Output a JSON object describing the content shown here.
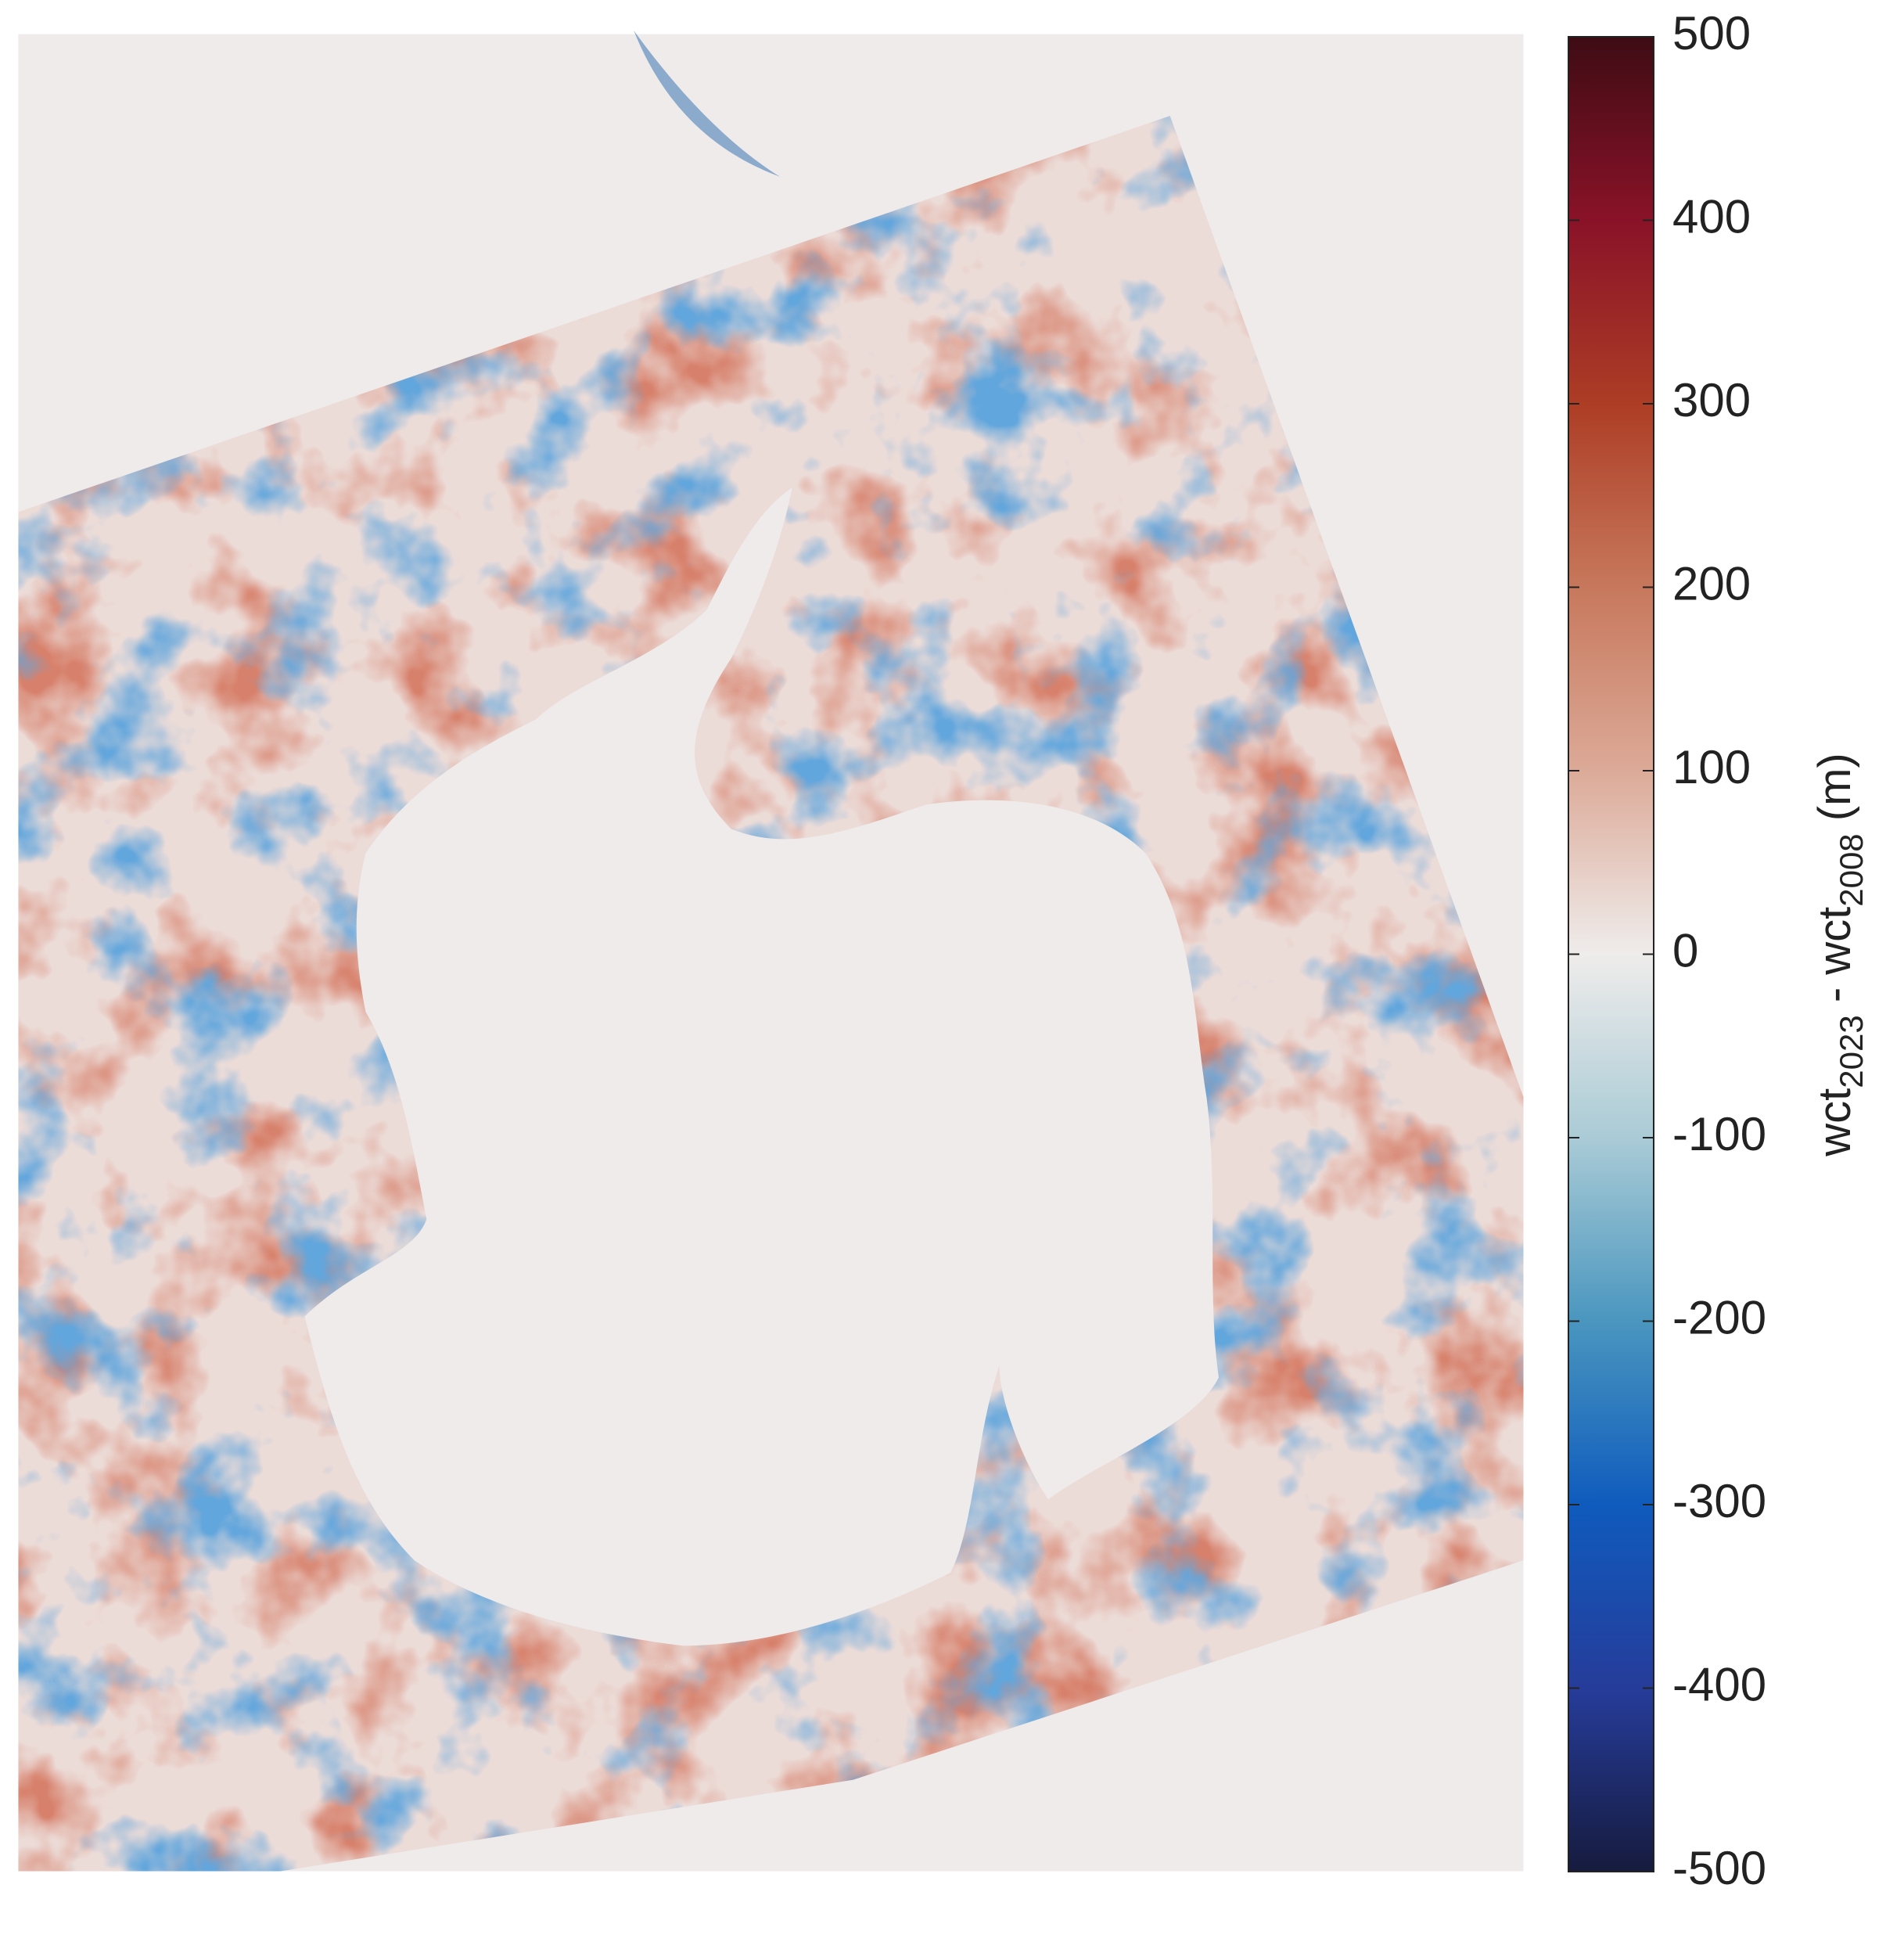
{
  "chart_data": {
    "type": "colorbar-map",
    "colorbar_label": [
      "wct",
      "2023",
      " - wct",
      "2008",
      " (m)"
    ],
    "clim": [
      -500,
      500
    ],
    "cticks": [
      -500,
      -400,
      -300,
      -200,
      -100,
      0,
      100,
      200,
      300,
      400,
      500
    ],
    "colormap": [
      "#161b3e",
      "#263c9a",
      "#0f5bbd",
      "#4a96bf",
      "#aacbd6",
      "#efeceb",
      "#dcaa98",
      "#c7785c",
      "#ad3d25",
      "#8a1228",
      "#3e0c14"
    ]
  }
}
